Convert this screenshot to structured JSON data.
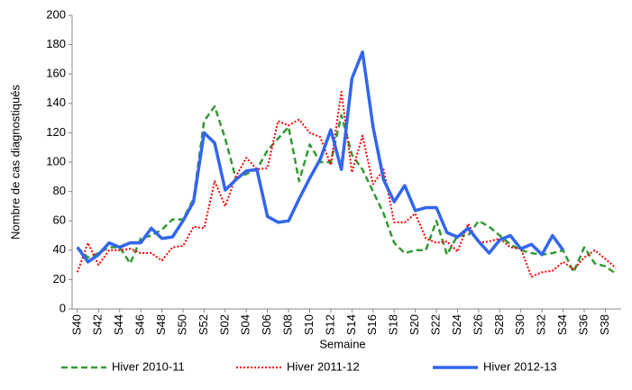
{
  "chart_data": {
    "type": "line",
    "y_label": "Nombre de cas diagnostiqués",
    "x_label": "Semaine",
    "categories": [
      "S40",
      null,
      "S42",
      null,
      "S44",
      null,
      "S46",
      null,
      "S48",
      null,
      "S50",
      null,
      "S52",
      null,
      "S02",
      null,
      "S04",
      null,
      "S06",
      null,
      "S08",
      null,
      "S10",
      null,
      "S12",
      null,
      "S14",
      null,
      "S16",
      null,
      "S18",
      null,
      "S20",
      null,
      "S22",
      null,
      "S24",
      null,
      "S26",
      null,
      "S28",
      null,
      "S30",
      null,
      "S32",
      null,
      "S34",
      null,
      "S36",
      null,
      "S38",
      null
    ],
    "series": [
      {
        "name": "Hiver 2010-11",
        "color": "#339933",
        "style": "dashed",
        "values": [
          42,
          35,
          38,
          42,
          42,
          31,
          48,
          50,
          54,
          61,
          61,
          75,
          128,
          138,
          116,
          89,
          92,
          95,
          108,
          116,
          124,
          87,
          112,
          100,
          100,
          132,
          105,
          95,
          80,
          65,
          45,
          38,
          40,
          40,
          60,
          37,
          50,
          50,
          60,
          56,
          50,
          44,
          40,
          38,
          37,
          38,
          40,
          25,
          42,
          31,
          29,
          24
        ]
      },
      {
        "name": "Hiver 2011-12",
        "color": "#ff0000",
        "style": "dotted",
        "values": [
          25,
          45,
          30,
          40,
          40,
          41,
          38,
          38,
          33,
          42,
          43,
          56,
          55,
          87,
          70,
          90,
          103,
          95,
          96,
          128,
          125,
          129,
          120,
          117,
          98,
          148,
          93,
          118,
          85,
          95,
          59,
          59,
          65,
          48,
          45,
          46,
          39,
          58,
          45,
          46,
          48,
          42,
          41,
          22,
          25,
          26,
          32,
          27,
          35,
          40,
          34,
          28
        ]
      },
      {
        "name": "Hiver 2012-13",
        "color": "#3366ee",
        "style": "solid",
        "values": [
          42,
          32,
          37,
          45,
          42,
          45,
          45,
          55,
          48,
          49,
          60,
          73,
          120,
          113,
          81,
          88,
          94,
          95,
          63,
          59,
          60,
          75,
          89,
          102,
          122,
          95,
          157,
          175,
          124,
          88,
          73,
          84,
          67,
          69,
          69,
          52,
          49,
          55,
          46,
          38,
          47,
          50,
          41,
          44,
          37,
          50,
          40,
          null,
          null,
          null,
          null,
          null
        ]
      }
    ],
    "ylim": [
      0,
      200
    ],
    "yticks": [
      0,
      20,
      40,
      60,
      80,
      100,
      120,
      140,
      160,
      180,
      200
    ],
    "grid": false
  }
}
